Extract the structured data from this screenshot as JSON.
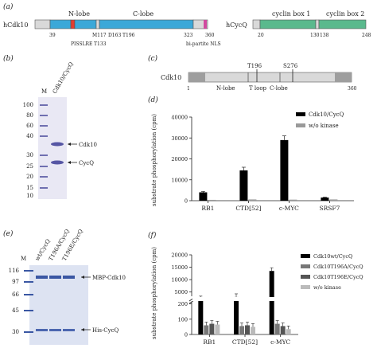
{
  "panelA": {
    "label": "(a)",
    "cdk10": {
      "name": "hCdk10",
      "nlobe": "N-lobe",
      "clobe": "C-lobe",
      "pisslre": "PISSLRE",
      "t133": "T133",
      "m117": "M117",
      "d163": "D163",
      "t196": "T196",
      "nls": "bi-partite NLS",
      "ticks": [
        "39",
        "117",
        "323",
        "360"
      ]
    },
    "cycq": {
      "name": "hCycQ",
      "box1": "cyclin box 1",
      "box2": "cyclin box 2",
      "ticks": [
        "20",
        "130",
        "138",
        "248"
      ]
    }
  },
  "panelB": {
    "label": "(b)",
    "lanes": [
      "M",
      "Cdk10/CycQ"
    ],
    "markers": [
      "100",
      "80",
      "60",
      "40",
      "30",
      "25",
      "20",
      "15",
      "10"
    ],
    "bands": [
      "Cdk10",
      "CycQ"
    ]
  },
  "panelC": {
    "label": "(c)",
    "name": "Cdk10",
    "t196": "T196",
    "s276": "S276",
    "nlobe": "N-lobe",
    "tloop": "T loop",
    "clobe": "C-lobe",
    "start": "1",
    "end": "360"
  },
  "panelD": {
    "label": "(d)",
    "chart_data": {
      "type": "bar",
      "ylabel": "substrate phosphorylation (cpm)",
      "ylim": [
        0,
        40000
      ],
      "yticks": [
        "0",
        "10000",
        "20000",
        "30000",
        "40000"
      ],
      "categories": [
        "RB1",
        "CTD[52]",
        "c-MYC",
        "SRSF7"
      ],
      "series": [
        {
          "name": "Cdk10/CycQ",
          "color": "#000000",
          "values": [
            4000,
            14500,
            29000,
            1500
          ],
          "errors": [
            400,
            1500,
            2000,
            200
          ]
        },
        {
          "name": "w/o kinase",
          "color": "#9a9a9a",
          "values": [
            400,
            600,
            500,
            600
          ],
          "errors": [
            0,
            0,
            0,
            0
          ]
        }
      ]
    }
  },
  "panelE": {
    "label": "(e)",
    "lanes": [
      "M",
      "wt/CycQ",
      "T196A/CycQ",
      "T196E/CycQ"
    ],
    "markers": [
      "116",
      "97",
      "66",
      "45",
      "30"
    ],
    "bands": [
      "MBP-Cdk10",
      "His-CycQ"
    ]
  },
  "panelF": {
    "label": "(f)",
    "chart_data": {
      "type": "bar",
      "ylabel": "substrate phosphorylation (cpm)",
      "broken_axis": true,
      "yticks": [
        "0",
        "100",
        "200",
        "5000",
        "10000",
        "15000",
        "20000"
      ],
      "categories": [
        "RB1",
        "CTD[52]",
        "c-MYC"
      ],
      "series": [
        {
          "name": "Cdk10wt/CycQ",
          "color": "#000000",
          "values": [
            230,
            245,
            13500
          ]
        },
        {
          "name": "Cdk10T196A/CycQ",
          "color": "#777777",
          "values": [
            60,
            55,
            70
          ]
        },
        {
          "name": "Cdk10T196E/CycQ",
          "color": "#555555",
          "values": [
            70,
            60,
            55
          ]
        },
        {
          "name": "w/o kinase",
          "color": "#bbbbbb",
          "values": [
            65,
            50,
            35
          ]
        }
      ]
    }
  }
}
